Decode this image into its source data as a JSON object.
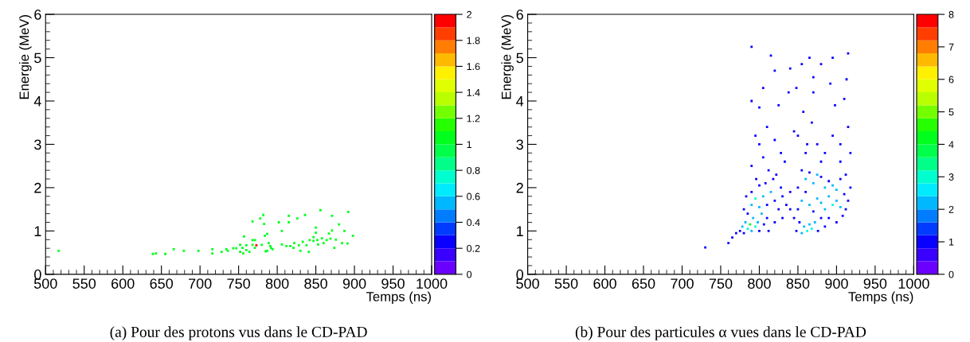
{
  "chart_data": [
    {
      "type": "scatter",
      "title": "(a) Pour des protons vus dans le CD-PAD",
      "xlabel": "Temps (ns)",
      "ylabel": "Energie (MeV)",
      "marker": "square",
      "grid": false,
      "x": [
        517,
        639,
        643,
        655,
        666,
        679,
        698,
        716,
        716,
        728,
        734,
        736,
        743,
        747,
        752,
        752,
        755,
        757,
        756,
        760,
        760,
        764,
        768,
        768,
        768,
        771,
        771,
        773,
        778,
        782,
        783,
        784,
        785,
        780,
        787,
        787,
        789,
        791,
        792,
        794,
        802,
        806,
        806,
        812,
        815,
        815,
        817,
        821,
        822,
        826,
        828,
        830,
        833,
        836,
        838,
        841,
        842,
        847,
        847,
        850,
        850,
        852,
        853,
        856,
        858,
        860,
        864,
        867,
        869,
        871,
        871,
        874,
        876,
        880,
        884,
        887,
        891,
        892,
        898
      ],
      "values": [
        0.54,
        0.47,
        0.48,
        0.47,
        0.58,
        0.54,
        0.54,
        0.58,
        0.48,
        0.52,
        0.58,
        0.54,
        0.6,
        0.6,
        0.68,
        0.52,
        0.61,
        0.87,
        0.48,
        0.67,
        0.56,
        0.52,
        0.68,
        1.22,
        0.79,
        0.79,
        0.61,
        0.67,
        1.29,
        1.37,
        1.16,
        0.89,
        0.53,
        0.68,
        0.93,
        0.54,
        0.72,
        0.65,
        0.61,
        0.58,
        1.2,
        1.0,
        0.69,
        0.65,
        1.35,
        1.2,
        0.65,
        0.61,
        0.72,
        1.29,
        0.67,
        0.54,
        0.75,
        1.37,
        0.67,
        0.52,
        0.79,
        0.86,
        0.77,
        1.08,
        0.96,
        0.79,
        0.69,
        1.48,
        0.83,
        0.72,
        0.79,
        0.94,
        0.82,
        1.35,
        1.01,
        0.61,
        0.8,
        1.15,
        0.72,
        1.0,
        0.71,
        1.44,
        0.89
      ],
      "cvalues": [
        1,
        1,
        1,
        1,
        1,
        1,
        1,
        1,
        1,
        1,
        1,
        1,
        1,
        1,
        1,
        1,
        1,
        1,
        1,
        1,
        1,
        1,
        1,
        1,
        1,
        1,
        1,
        2,
        1,
        1,
        1,
        1,
        1,
        1,
        1,
        1,
        1,
        1,
        1,
        1,
        1,
        1,
        1,
        1,
        1,
        1,
        1,
        1,
        1,
        1,
        1,
        1,
        1,
        1,
        1,
        1,
        1,
        1,
        1,
        1,
        1,
        1,
        1,
        1,
        1,
        1,
        1,
        1,
        1,
        1,
        1,
        1,
        1,
        1,
        1,
        1,
        1,
        1,
        1
      ],
      "xlim": [
        500,
        1000
      ],
      "xticks": [
        500,
        550,
        600,
        650,
        700,
        750,
        800,
        850,
        900,
        950,
        1000
      ],
      "ylim": [
        0,
        6
      ],
      "yticks": [
        0,
        1,
        2,
        3,
        4,
        5,
        6
      ],
      "clim": [
        0,
        2
      ],
      "cticks": [
        0,
        0.2,
        0.4,
        0.6,
        0.8,
        1,
        1.2,
        1.4,
        1.6,
        1.8,
        2
      ]
    },
    {
      "type": "scatter",
      "title": "(b) Pour des particules α vues dans le CD-PAD",
      "xlabel": "Temps (ns)",
      "ylabel": "Energie (MeV)",
      "marker": "square",
      "grid": false,
      "x": [
        730,
        760,
        765,
        770,
        790,
        815,
        820,
        840,
        855,
        865,
        870,
        880,
        895,
        915,
        805,
        838,
        848,
        892,
        790,
        800,
        825,
        857,
        898,
        913,
        910,
        870,
        795,
        800,
        805,
        810,
        820,
        828,
        833,
        845,
        850,
        862,
        868,
        875,
        885,
        895,
        905,
        915,
        918,
        790,
        812,
        822,
        860,
        880,
        905,
        775,
        778,
        780,
        782,
        785,
        788,
        790,
        792,
        795,
        798,
        800,
        803,
        806,
        810,
        785,
        790,
        795,
        800,
        805,
        810,
        815,
        820,
        825,
        830,
        835,
        840,
        790,
        800,
        808,
        818,
        828,
        780,
        783,
        796,
        812,
        820,
        830,
        840,
        848,
        852,
        855,
        858,
        862,
        865,
        868,
        872,
        876,
        880,
        885,
        850,
        855,
        860,
        865,
        870,
        875,
        880,
        885,
        890,
        895,
        900,
        905,
        910,
        915,
        890,
        900,
        908,
        912,
        860,
        865,
        870,
        875,
        880,
        885,
        890,
        895,
        900,
        905,
        912,
        918,
        855,
        850,
        845
      ],
      "values": [
        0.62,
        0.72,
        0.85,
        0.95,
        5.25,
        5.05,
        4.7,
        4.75,
        4.85,
        5.0,
        4.55,
        4.85,
        5.0,
        5.1,
        4.3,
        4.2,
        4.3,
        4.4,
        4.0,
        3.85,
        3.9,
        3.75,
        3.9,
        4.5,
        4.05,
        4.2,
        3.2,
        3.0,
        2.7,
        3.4,
        3.1,
        2.8,
        2.6,
        3.3,
        3.2,
        3.0,
        3.5,
        3.0,
        2.8,
        3.2,
        3.0,
        3.4,
        2.8,
        2.5,
        2.4,
        2.3,
        2.8,
        2.6,
        2.6,
        1.0,
        1.1,
        0.95,
        1.2,
        1.05,
        1.15,
        1.0,
        1.3,
        1.1,
        1.2,
        1.0,
        1.4,
        1.15,
        1.3,
        1.4,
        1.6,
        1.75,
        1.55,
        1.8,
        1.6,
        1.9,
        1.7,
        1.5,
        1.8,
        1.6,
        1.9,
        1.9,
        2.05,
        2.1,
        2.2,
        2.0,
        1.5,
        1.8,
        2.2,
        1.0,
        1.2,
        1.3,
        1.5,
        1.0,
        1.2,
        0.95,
        1.1,
        1.0,
        1.15,
        1.05,
        1.2,
        1.0,
        1.3,
        1.1,
        1.5,
        1.7,
        1.9,
        1.6,
        1.45,
        1.75,
        1.65,
        1.5,
        1.8,
        1.6,
        1.7,
        1.55,
        1.85,
        1.7,
        1.3,
        1.2,
        1.35,
        1.5,
        2.2,
        2.35,
        2.1,
        2.3,
        2.25,
        2.0,
        2.15,
        2.05,
        1.95,
        2.2,
        2.3,
        2.0,
        2.4,
        2.0,
        1.3
      ],
      "cvalues": [
        1,
        1,
        1,
        1,
        1,
        1,
        1,
        1,
        1,
        1,
        1,
        1,
        1,
        1,
        1,
        1,
        1,
        1,
        1,
        1,
        1,
        1,
        1,
        1,
        1,
        1,
        1,
        1,
        1,
        1,
        1,
        1,
        1,
        1,
        1,
        1,
        1,
        1,
        1,
        1,
        1,
        1,
        1,
        1,
        1,
        1,
        1,
        1,
        1,
        1,
        2,
        1,
        2,
        3,
        4,
        2,
        2,
        3,
        2,
        1,
        2,
        1,
        1,
        1,
        2,
        3,
        2,
        2,
        1,
        2,
        1,
        1,
        1,
        1,
        1,
        1,
        1,
        1,
        1,
        1,
        1,
        1,
        1,
        1,
        1,
        1,
        1,
        1,
        1,
        2,
        2,
        3,
        2,
        3,
        2,
        1,
        1,
        1,
        1,
        2,
        1,
        2,
        1,
        2,
        2,
        2,
        2,
        3,
        2,
        2,
        1,
        1,
        1,
        1,
        1,
        1,
        2,
        1,
        2,
        2,
        1,
        2,
        1,
        2,
        2,
        1,
        1,
        1,
        1,
        1,
        1
      ],
      "xlim": [
        500,
        1000
      ],
      "xticks": [
        500,
        550,
        600,
        650,
        700,
        750,
        800,
        850,
        900,
        950,
        1000
      ],
      "ylim": [
        0,
        6
      ],
      "yticks": [
        0,
        1,
        2,
        3,
        4,
        5,
        6
      ],
      "clim": [
        0,
        8
      ],
      "cticks": [
        0,
        1,
        2,
        3,
        4,
        5,
        6,
        7,
        8
      ]
    }
  ]
}
